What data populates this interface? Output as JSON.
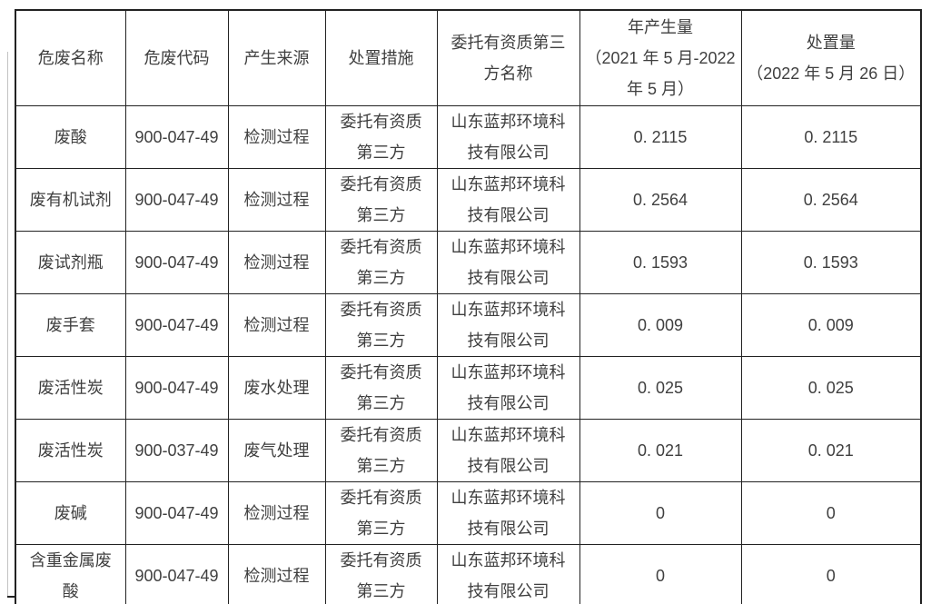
{
  "page": {
    "background_color": "#ffffff",
    "text_color": "#3f3f3f",
    "grid_color": "#222222"
  },
  "table": {
    "columns": [
      "危废名称",
      "危废代码",
      "产生来源",
      "处置措施",
      "委托有资质第三\n方名称",
      "年产生量\n（2021 年 5 月-2022\n年 5 月）",
      "处置量\n（2022 年 5 月 26 日）"
    ],
    "rows": [
      [
        "废酸",
        "900-047-49",
        "检测过程",
        "委托有资质\n第三方",
        "山东蓝邦环境科\n技有限公司",
        "0. 2115",
        "0. 2115"
      ],
      [
        "废有机试剂",
        "900-047-49",
        "检测过程",
        "委托有资质\n第三方",
        "山东蓝邦环境科\n技有限公司",
        "0. 2564",
        "0. 2564"
      ],
      [
        "废试剂瓶",
        "900-047-49",
        "检测过程",
        "委托有资质\n第三方",
        "山东蓝邦环境科\n技有限公司",
        "0. 1593",
        "0. 1593"
      ],
      [
        "废手套",
        "900-047-49",
        "检测过程",
        "委托有资质\n第三方",
        "山东蓝邦环境科\n技有限公司",
        "0. 009",
        "0. 009"
      ],
      [
        "废活性炭",
        "900-047-49",
        "废水处理",
        "委托有资质\n第三方",
        "山东蓝邦环境科\n技有限公司",
        "0. 025",
        "0. 025"
      ],
      [
        "废活性炭",
        "900-037-49",
        "废气处理",
        "委托有资质\n第三方",
        "山东蓝邦环境科\n技有限公司",
        "0. 021",
        "0. 021"
      ],
      [
        "废碱",
        "900-047-49",
        "检测过程",
        "委托有资质\n第三方",
        "山东蓝邦环境科\n技有限公司",
        "0",
        "0"
      ],
      [
        "含重金属废\n酸",
        "900-047-49",
        "检测过程",
        "委托有资质\n第三方",
        "山东蓝邦环境科\n技有限公司",
        "0",
        "0"
      ]
    ]
  }
}
